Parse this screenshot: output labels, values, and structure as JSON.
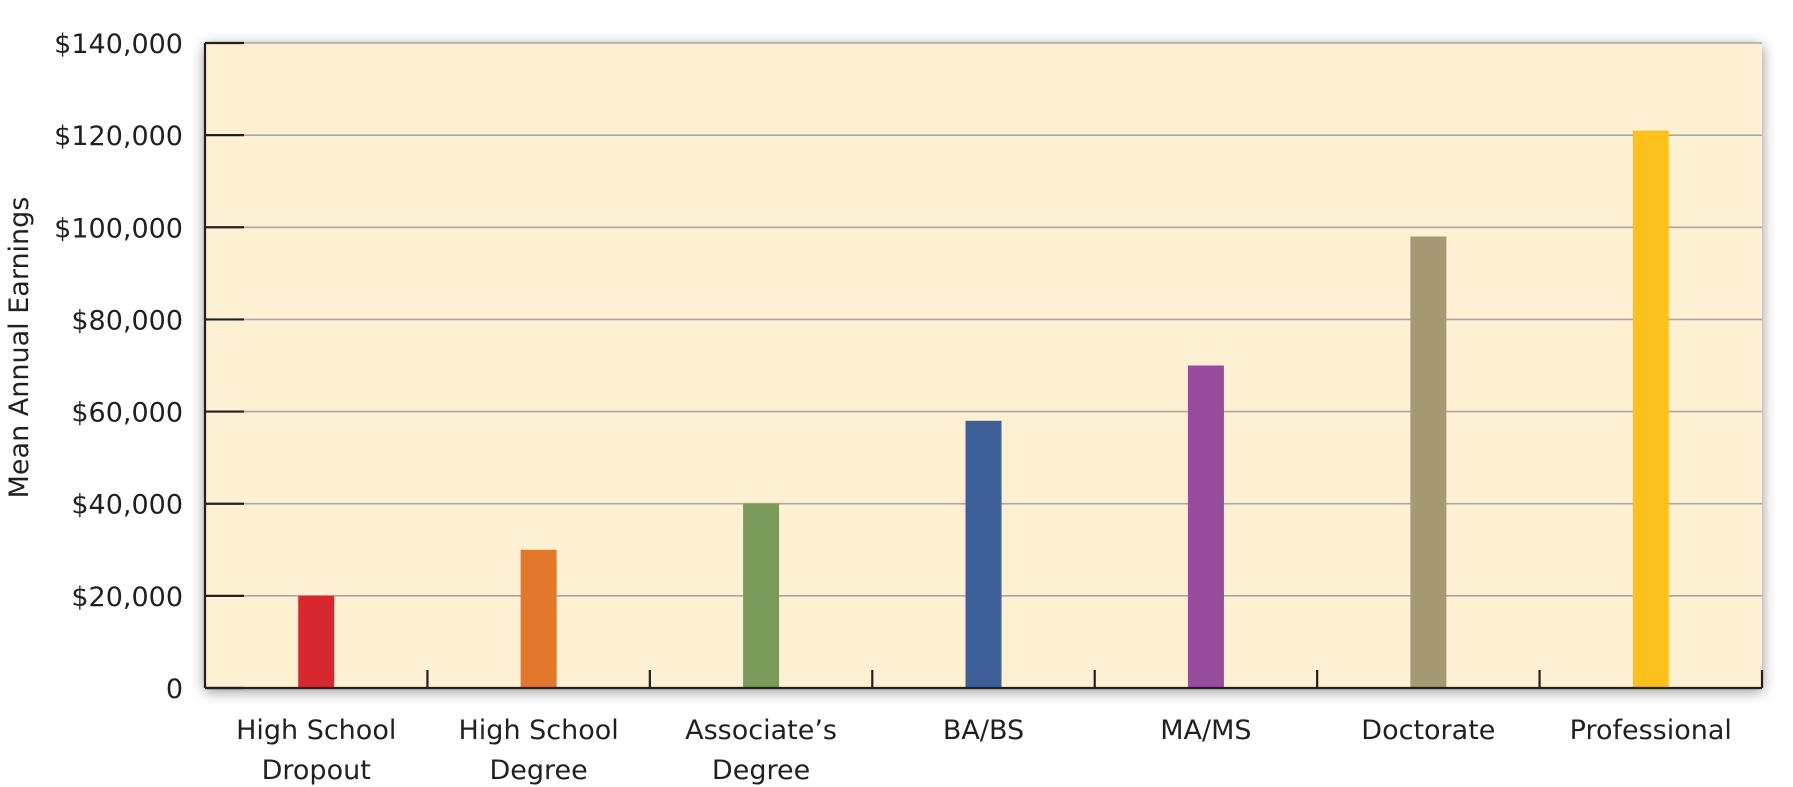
{
  "chart_data": {
    "type": "bar",
    "ylabel": "Mean Annual Earnings",
    "xlabel": "",
    "ylim": [
      0,
      140000
    ],
    "yticks": [
      {
        "value": 0,
        "label": "0"
      },
      {
        "value": 20000,
        "label": "$20,000"
      },
      {
        "value": 40000,
        "label": "$40,000"
      },
      {
        "value": 60000,
        "label": "$60,000"
      },
      {
        "value": 80000,
        "label": "$80,000"
      },
      {
        "value": 100000,
        "label": "$100,000"
      },
      {
        "value": 120000,
        "label": "$120,000"
      },
      {
        "value": 140000,
        "label": "$140,000"
      }
    ],
    "grid": true,
    "legend": "none",
    "plot_background": "#fdf0d3",
    "categories": [
      {
        "lines": [
          "High School",
          "Dropout"
        ]
      },
      {
        "lines": [
          "High School",
          "Degree"
        ]
      },
      {
        "lines": [
          "Associate’s",
          "Degree"
        ]
      },
      {
        "lines": [
          "BA/BS"
        ]
      },
      {
        "lines": [
          "MA/MS"
        ]
      },
      {
        "lines": [
          "Doctorate"
        ]
      },
      {
        "lines": [
          "Professional"
        ]
      }
    ],
    "values": [
      20000,
      30000,
      40000,
      58000,
      70000,
      98000,
      121000
    ],
    "colors": [
      "#d7282f",
      "#e3782c",
      "#7a9c5a",
      "#3f5f98",
      "#984c9e",
      "#a69a74",
      "#fdc11b"
    ]
  }
}
